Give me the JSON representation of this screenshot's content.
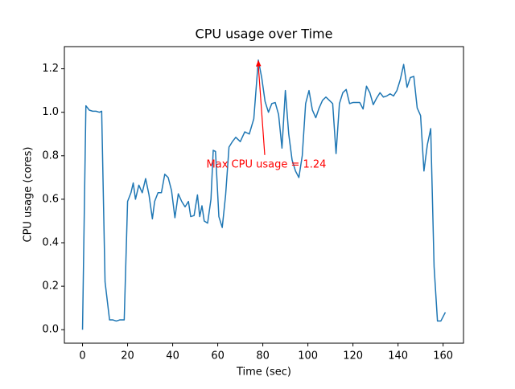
{
  "chart_data": {
    "type": "line",
    "title": "CPU usage over Time",
    "xlabel": "Time (sec)",
    "ylabel": "CPU usage (cores)",
    "series": [
      {
        "name": "CPU usage",
        "color": "#1f77b4",
        "x": [
          0,
          1.5,
          3,
          4.5,
          6,
          7.5,
          8.5,
          10,
          12,
          13.5,
          15,
          16.5,
          18.5,
          20,
          21.5,
          22.5,
          23.5,
          25,
          26.5,
          28,
          29.5,
          31,
          32,
          33.5,
          35,
          36.5,
          38,
          39.5,
          41,
          42.5,
          44,
          45.5,
          47,
          48,
          49.5,
          51,
          52,
          53,
          54,
          55.5,
          57,
          58,
          59,
          60.5,
          62,
          63.5,
          65,
          66.5,
          68,
          70,
          72,
          74,
          76,
          78,
          79.5,
          81,
          82.5,
          84,
          85.5,
          87,
          88.5,
          90,
          91.5,
          93,
          94.5,
          96,
          97.5,
          99,
          100.5,
          102,
          103.5,
          105,
          106.5,
          108,
          109.5,
          111,
          112.5,
          114,
          115.5,
          117,
          118.5,
          120,
          121.5,
          123,
          124.5,
          126,
          127.5,
          129,
          130.5,
          132,
          133.5,
          135,
          136.5,
          138,
          139.5,
          141,
          142.5,
          144,
          145.5,
          147,
          148.5,
          150,
          151.5,
          153,
          154.5,
          156,
          157.5,
          159,
          161
        ],
        "values": [
          0,
          1.03,
          1.01,
          1.005,
          1.005,
          1.0,
          1.005,
          0.22,
          0.045,
          0.045,
          0.04,
          0.045,
          0.045,
          0.59,
          0.63,
          0.675,
          0.6,
          0.665,
          0.63,
          0.695,
          0.62,
          0.51,
          0.59,
          0.63,
          0.63,
          0.715,
          0.7,
          0.64,
          0.515,
          0.625,
          0.59,
          0.565,
          0.59,
          0.52,
          0.525,
          0.62,
          0.52,
          0.57,
          0.5,
          0.49,
          0.6,
          0.825,
          0.82,
          0.52,
          0.47,
          0.62,
          0.84,
          0.865,
          0.885,
          0.865,
          0.91,
          0.9,
          0.97,
          1.24,
          1.16,
          1.05,
          1.0,
          1.04,
          1.045,
          0.99,
          0.835,
          1.1,
          0.9,
          0.78,
          0.73,
          0.7,
          0.8,
          1.04,
          1.1,
          1.01,
          0.975,
          1.02,
          1.055,
          1.07,
          1.055,
          1.04,
          0.81,
          1.04,
          1.09,
          1.105,
          1.04,
          1.045,
          1.045,
          1.045,
          1.015,
          1.12,
          1.09,
          1.035,
          1.065,
          1.09,
          1.07,
          1.075,
          1.085,
          1.075,
          1.1,
          1.15,
          1.22,
          1.115,
          1.16,
          1.165,
          1.02,
          0.985,
          0.73,
          0.85,
          0.925,
          0.29,
          0.04,
          0.04,
          0.08
        ]
      }
    ],
    "xlim": [
      -8.05,
      169.05
    ],
    "xticks": [
      0,
      20,
      40,
      60,
      80,
      100,
      120,
      140,
      160
    ],
    "ylim": [
      -0.062,
      1.302
    ],
    "yticks": [
      {
        "value": 0,
        "label": "0.0"
      },
      0.2,
      0.4,
      0.6,
      0.8,
      {
        "value": 1,
        "label": "1.0"
      },
      1.2
    ],
    "annotation": {
      "text": "Max CPU usage = 1.24",
      "x": 78,
      "y": 1.24,
      "color": "red"
    }
  }
}
